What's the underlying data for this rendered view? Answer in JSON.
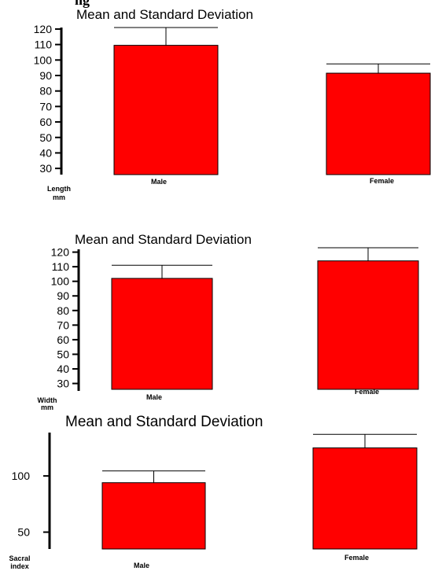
{
  "page": {
    "heading_fragment": "ng"
  },
  "chart_data": [
    {
      "type": "bar",
      "title": "Mean and Standard Deviation",
      "ylabel": [
        "Length",
        "mm"
      ],
      "categories": [
        "Male",
        "Female"
      ],
      "values": [
        109.5,
        91.5
      ],
      "error": [
        11.5,
        6.0
      ],
      "yticks": [
        30,
        40,
        50,
        60,
        70,
        80,
        90,
        100,
        110,
        120
      ],
      "ylim": [
        26,
        122
      ],
      "bar_color": "#ff0000",
      "grid": false
    },
    {
      "type": "bar",
      "title": "Mean and Standard Deviation",
      "ylabel": [
        "Width",
        "mm"
      ],
      "categories": [
        "Male",
        "Female"
      ],
      "values": [
        102.0,
        114.0
      ],
      "error": [
        9.0,
        9.0
      ],
      "yticks": [
        30,
        40,
        50,
        60,
        70,
        80,
        90,
        100,
        110,
        120
      ],
      "ylim": [
        26,
        123
      ],
      "bar_color": "#ff0000",
      "grid": false
    },
    {
      "type": "bar",
      "title": "Mean and Standard Deviation",
      "ylabel": [
        "Sacral",
        "index"
      ],
      "categories": [
        "Male",
        "Female"
      ],
      "values": [
        94.0,
        125.0
      ],
      "error": [
        10.5,
        12.0
      ],
      "yticks": [
        50,
        100
      ],
      "ylim": [
        35,
        140
      ],
      "bar_color": "#ff0000",
      "grid": false
    }
  ]
}
